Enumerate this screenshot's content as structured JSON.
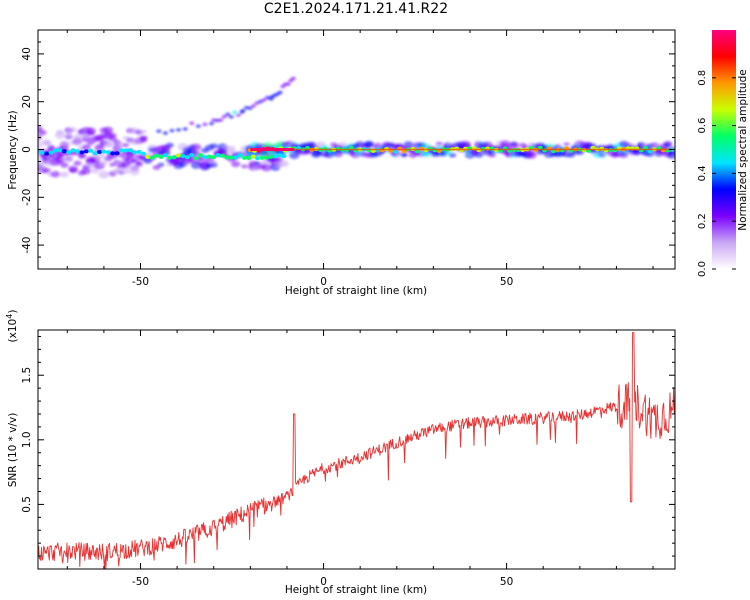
{
  "title": "C2E1.2024.171.21.41.R22",
  "chart_data": [
    {
      "type": "heatmap",
      "xlabel": "Height of straight line (km)",
      "ylabel": "Frequency (Hz)",
      "xlim": [
        -78,
        96
      ],
      "ylim": [
        -50,
        50
      ],
      "x_ticks": [
        -50,
        0,
        50
      ],
      "y_ticks": [
        -40,
        -20,
        0,
        20,
        40
      ],
      "colorbar": {
        "label": "Normalized spectral amplitude",
        "range": [
          0.0,
          1.0
        ],
        "ticks": [
          "0.0",
          "0.2",
          "0.4",
          "0.6",
          "0.8"
        ],
        "colors": [
          "#ffffff",
          "#c9a6f5",
          "#7a00ff",
          "#0000ff",
          "#00e5ff",
          "#00ff66",
          "#c8ff00",
          "#ff9900",
          "#ff0000",
          "#ff0080"
        ]
      },
      "band_segments": [
        {
          "x_range": [
            -78,
            -48
          ],
          "freq_center": -1,
          "freq_spread": 12,
          "amplitude": 0.35
        },
        {
          "x_range": [
            -48,
            -10
          ],
          "freq_center": -3,
          "freq_spread": 6,
          "amplitude": 0.5
        },
        {
          "x_range": [
            -20,
            -8
          ],
          "freq_center": 0,
          "freq_spread": 3,
          "amplitude": 0.9
        },
        {
          "x_range": [
            -8,
            96
          ],
          "freq_center": 0,
          "freq_spread": 3,
          "amplitude": 0.6
        }
      ],
      "upper_branch": [
        {
          "x": -45,
          "y": 7
        },
        {
          "x": -30,
          "y": 12
        },
        {
          "x": -22,
          "y": 16
        },
        {
          "x": -14,
          "y": 22
        },
        {
          "x": -8,
          "y": 30
        }
      ]
    },
    {
      "type": "line",
      "xlabel": "Height of straight line (km)",
      "ylabel": "SNR (10 * v/v)",
      "y_multiplier": "(x10",
      "y_multiplier_exp": "4",
      "y_multiplier_close": ")",
      "xlim": [
        -78,
        96
      ],
      "ylim": [
        0,
        18500
      ],
      "x_ticks": [
        -50,
        0,
        50
      ],
      "y_tick_labels": [
        "0.5",
        "1.0",
        "1.5"
      ],
      "y_tick_values": [
        5000,
        10000,
        15000
      ],
      "line_color": "#e83030",
      "series": [
        {
          "x": [
            -78,
            -70,
            -60,
            -50,
            -40,
            -30,
            -20,
            -15,
            -10,
            -5,
            0,
            5,
            10,
            15,
            20,
            25,
            30,
            35,
            40,
            50,
            60,
            70,
            75,
            80,
            85,
            88,
            90,
            93,
            96
          ],
          "values": [
            1200,
            1400,
            1300,
            1600,
            2200,
            3200,
            4500,
            5000,
            5600,
            7000,
            7800,
            8200,
            8700,
            9200,
            9800,
            10300,
            10800,
            11100,
            11300,
            11500,
            11700,
            11900,
            12300,
            12600,
            12800,
            12200,
            11500,
            12000,
            12400
          ]
        }
      ]
    }
  ]
}
